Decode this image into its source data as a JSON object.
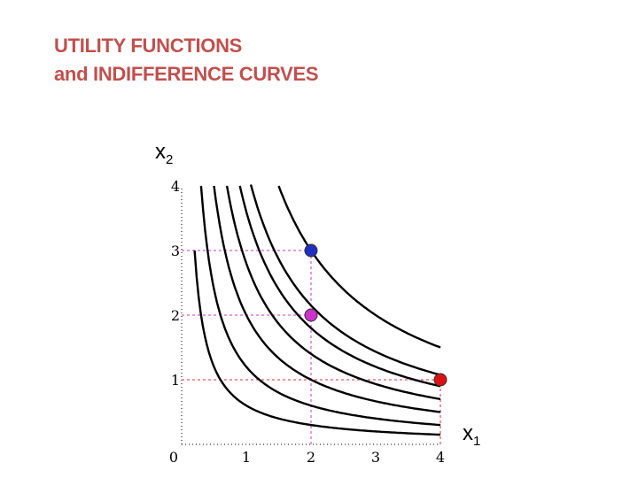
{
  "title": {
    "line1": "UTILITY FUNCTIONS",
    "line2": "and INDIFFERENCE CURVES"
  },
  "colors": {
    "title": "#c0504d",
    "curve": "#000000",
    "guide_purple": "#cc33cc",
    "guide_red": "#cc3333",
    "point_blue": "#1f2fbf",
    "point_magenta": "#cc33cc",
    "point_red": "#dd1111"
  },
  "chart_data": {
    "type": "line",
    "title": "",
    "xlabel_text": "x",
    "xlabel_sub": "1",
    "ylabel_text": "x",
    "ylabel_sub": "2",
    "xlim": [
      0,
      4
    ],
    "ylim": [
      0,
      4
    ],
    "grid": false,
    "x_ticks": [
      "0",
      "1",
      "2",
      "3",
      "4"
    ],
    "y_ticks": [
      "1",
      "2",
      "3",
      "4"
    ],
    "curves": [
      {
        "utility": 0.6,
        "x_range": [
          0.2,
          4
        ]
      },
      {
        "utility": 1.2,
        "x_range": [
          0.3,
          4
        ]
      },
      {
        "utility": 2.0,
        "x_range": [
          0.5,
          4
        ]
      },
      {
        "utility": 2.8,
        "x_range": [
          0.7,
          4
        ]
      },
      {
        "utility": 3.6,
        "x_range": [
          0.9,
          4
        ]
      },
      {
        "utility": 4.3,
        "x_range": [
          1.07,
          4
        ]
      },
      {
        "utility": 6.0,
        "x_range": [
          1.5,
          4
        ]
      }
    ],
    "points": [
      {
        "x": 2,
        "y": 3,
        "color": "point_blue"
      },
      {
        "x": 2,
        "y": 2,
        "color": "point_magenta"
      },
      {
        "x": 4,
        "y": 1,
        "color": "point_red"
      }
    ],
    "guides": [
      {
        "kind": "v",
        "x": 2,
        "y_to": 3,
        "color": "guide_purple"
      },
      {
        "kind": "h",
        "y": 3,
        "x_to": 2,
        "color": "guide_purple"
      },
      {
        "kind": "h",
        "y": 2,
        "x_to": 2,
        "color": "guide_purple"
      },
      {
        "kind": "h",
        "y": 1,
        "x_to": 4,
        "color": "guide_red"
      },
      {
        "kind": "v",
        "x": 4,
        "y_to": 1,
        "color": "guide_red"
      }
    ]
  }
}
